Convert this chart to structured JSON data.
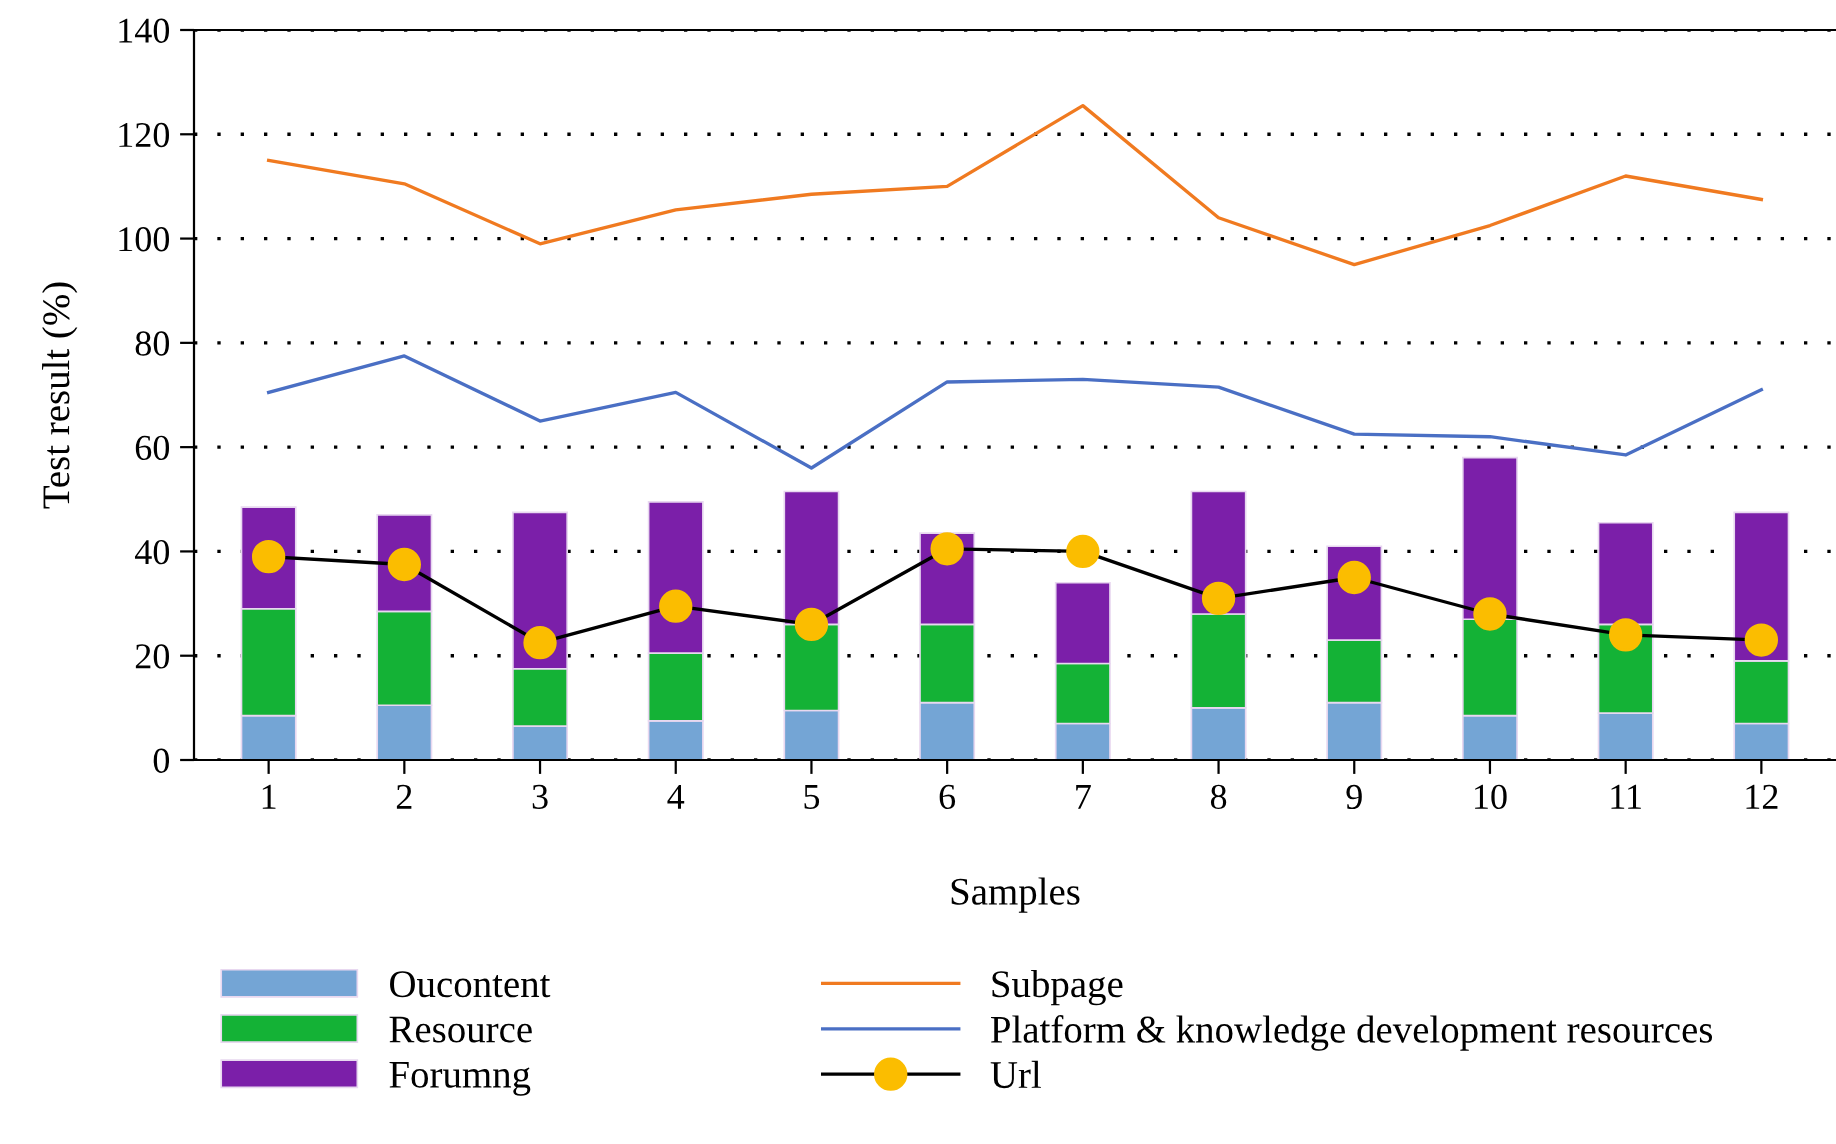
{
  "chart_data": {
    "type": "bar",
    "stacked": true,
    "xlabel": "Samples",
    "ylabel": "Test result (%)",
    "categories": [
      "1",
      "2",
      "3",
      "4",
      "5",
      "6",
      "7",
      "8",
      "9",
      "10",
      "11",
      "12"
    ],
    "ylim": [
      0,
      140
    ],
    "yticks": [
      0,
      20,
      40,
      60,
      80,
      100,
      120,
      140
    ],
    "grid": "y",
    "legend": "bottom",
    "series": [
      {
        "name": "Oucontent",
        "color": "#74a5d5",
        "values": [
          8.5,
          10.5,
          6.5,
          7.5,
          9.5,
          11,
          7,
          10,
          11,
          8.5,
          9,
          7
        ]
      },
      {
        "name": "Resource",
        "color": "#14b236",
        "values": [
          20.5,
          18,
          11,
          13,
          16.5,
          15,
          11.5,
          18,
          12,
          18.5,
          17,
          12
        ]
      },
      {
        "name": "Forumng",
        "color": "#7b1fa9",
        "values": [
          19.5,
          18.5,
          30,
          29,
          25.5,
          17.5,
          15.5,
          23.5,
          18,
          31,
          19.5,
          28.5
        ]
      },
      {
        "name": "Subpage",
        "type": "line",
        "color": "#f07a20",
        "marker": "none",
        "values": [
          115,
          110.5,
          99,
          105.5,
          108.5,
          110,
          125.5,
          104,
          95,
          102.5,
          112,
          107.5
        ]
      },
      {
        "name": "Platform & knowledge development resources",
        "type": "line",
        "color": "#4a6fc4",
        "marker": "none",
        "values": [
          70.5,
          77.5,
          65,
          70.5,
          56,
          72.5,
          73,
          71.5,
          62.5,
          62,
          58.5,
          71
        ]
      },
      {
        "name": "Url",
        "type": "line",
        "color": "#fbbd00",
        "marker": "circle",
        "values": [
          39,
          37.5,
          22.5,
          29.5,
          26,
          40.5,
          40,
          31,
          35,
          28,
          24,
          23
        ]
      }
    ]
  }
}
